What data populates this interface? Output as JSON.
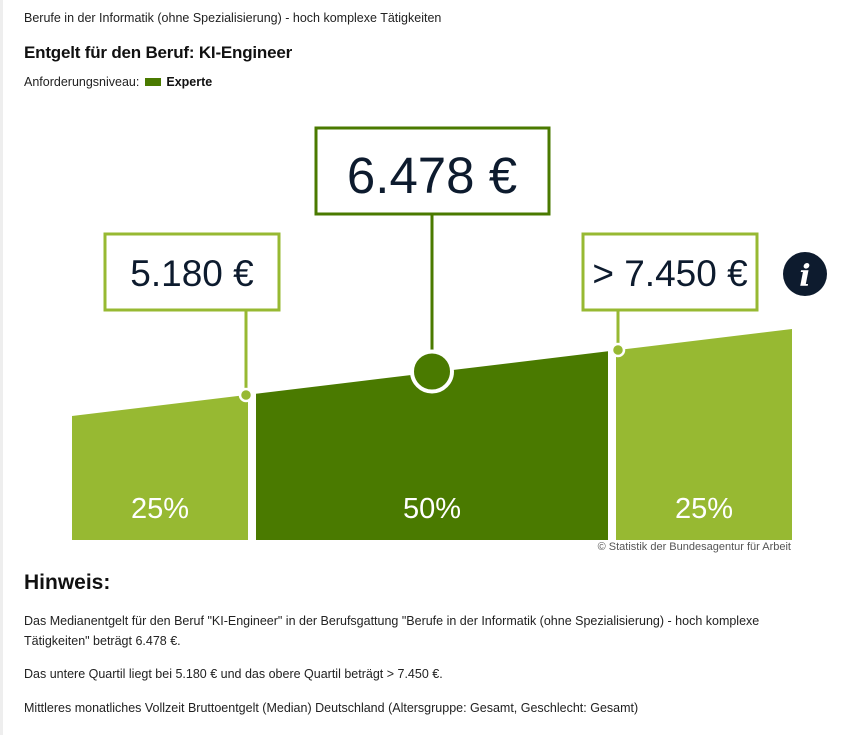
{
  "header": {
    "subtitle": "Berufe in der Informatik (ohne Spezialisierung) - hoch komplexe Tätigkeiten",
    "title": "Entgelt für den Beruf: KI-Engineer",
    "level_label": "Anforderungsniveau:",
    "level_value": "Experte"
  },
  "colors": {
    "outer_quartile": "#97b932",
    "middle_band": "#4a7a00",
    "median_box_border": "#4a7a00",
    "quartile_box_border": "#97b932",
    "level_swatch": "#4a7a00",
    "info_circle": "#0d1b2e",
    "value_text": "#0d1b2e"
  },
  "chart_data": {
    "type": "area",
    "title": "Entgelt für den Beruf: KI-Engineer",
    "segments": [
      {
        "share_label": "25%",
        "share": 25
      },
      {
        "share_label": "50%",
        "share": 50
      },
      {
        "share_label": "25%",
        "share": 25
      }
    ],
    "values": {
      "lower_quartile": 5180,
      "median": 6478,
      "upper_quartile": 7450
    },
    "labels": {
      "lower_quartile": "5.180 €",
      "median": "6.478 €",
      "upper_quartile": "> 7.450 €"
    },
    "info_icon": "info-icon",
    "credit": "© Statistik der Bundesagentur für Arbeit"
  },
  "note": {
    "title": "Hinweis:",
    "p1": "Das Medianentgelt für den Beruf \"KI-Engineer\" in der Berufsgattung \"Berufe in der Informatik (ohne Spezialisierung) - hoch komplexe Tätigkeiten\" beträgt 6.478 €.",
    "p2": "Das untere Quartil liegt bei 5.180 € und das obere Quartil beträgt > 7.450 €.",
    "p3": "Mittleres monatliches Vollzeit Bruttoentgelt (Median) Deutschland (Altersgruppe: Gesamt, Geschlecht: Gesamt)"
  }
}
